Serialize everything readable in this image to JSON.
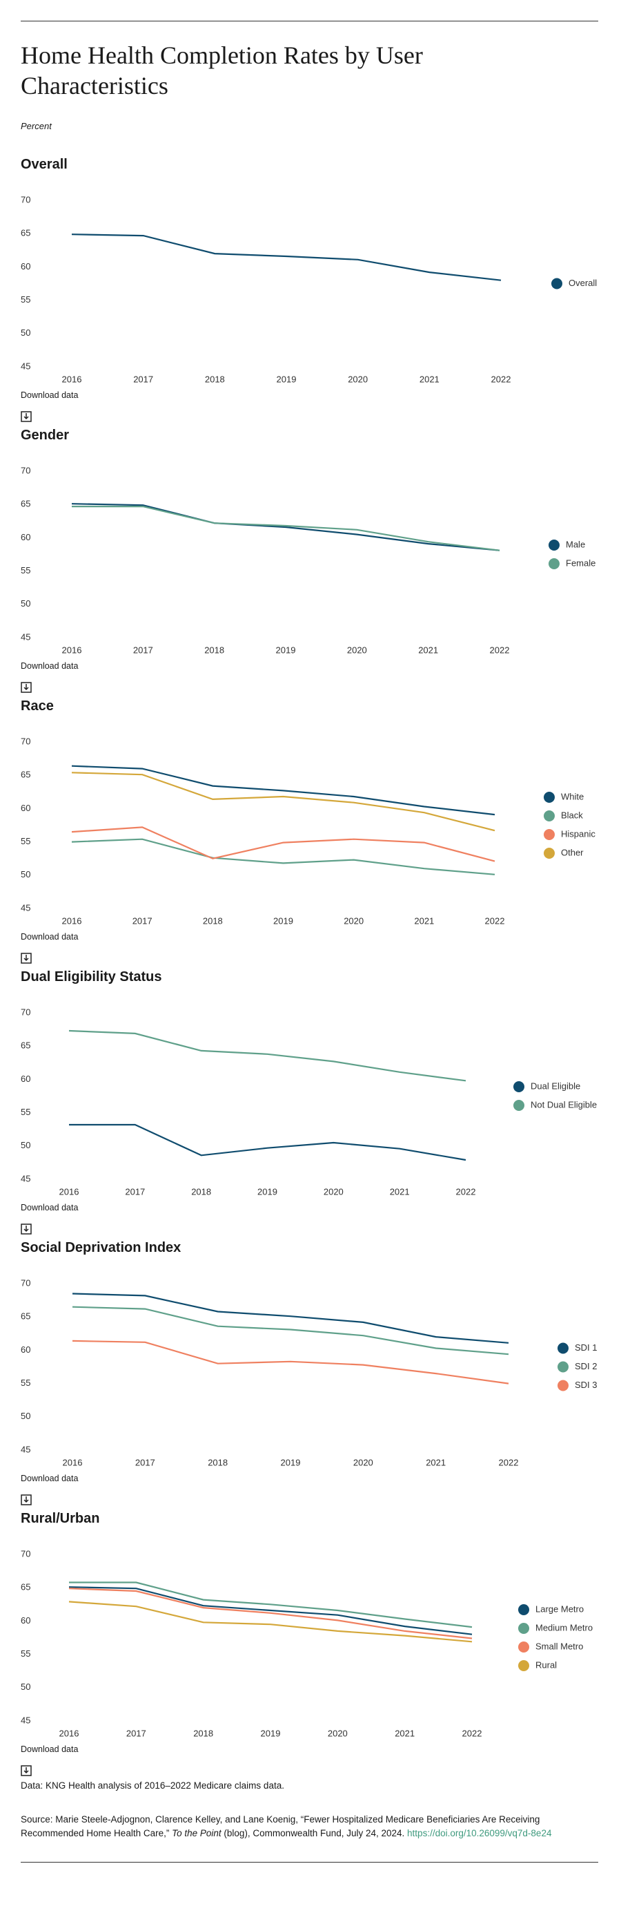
{
  "header": {
    "title": "Home Health Completion Rates by User Characteristics",
    "subtitle": "Percent"
  },
  "download_label": "Download data",
  "chart_data": [
    {
      "type": "line",
      "title": "Overall",
      "categories": [
        "2016",
        "2017",
        "2018",
        "2019",
        "2020",
        "2021",
        "2022"
      ],
      "ylim": [
        45,
        70
      ],
      "yticks": [
        45,
        50,
        55,
        60,
        65,
        70
      ],
      "series": [
        {
          "name": "Overall",
          "color": "#0f4c6e",
          "values": [
            64.9,
            64.7,
            62.0,
            61.6,
            61.1,
            59.2,
            58.0
          ]
        }
      ]
    },
    {
      "type": "line",
      "title": "Gender",
      "categories": [
        "2016",
        "2017",
        "2018",
        "2019",
        "2020",
        "2021",
        "2022"
      ],
      "ylim": [
        45,
        70
      ],
      "yticks": [
        45,
        50,
        55,
        60,
        65,
        70
      ],
      "series": [
        {
          "name": "Male",
          "color": "#0f4c6e",
          "values": [
            65.1,
            64.9,
            62.2,
            61.6,
            60.5,
            59.1,
            58.1
          ]
        },
        {
          "name": "Female",
          "color": "#5fa08a",
          "values": [
            64.7,
            64.7,
            62.2,
            61.8,
            61.2,
            59.4,
            58.1
          ]
        }
      ]
    },
    {
      "type": "line",
      "title": "Race",
      "categories": [
        "2016",
        "2017",
        "2018",
        "2019",
        "2020",
        "2021",
        "2022"
      ],
      "ylim": [
        45,
        70
      ],
      "yticks": [
        45,
        50,
        55,
        60,
        65,
        70
      ],
      "series": [
        {
          "name": "White",
          "color": "#0f4c6e",
          "values": [
            66.4,
            66.0,
            63.4,
            62.7,
            61.8,
            60.3,
            59.1
          ]
        },
        {
          "name": "Black",
          "color": "#5fa08a",
          "values": [
            55.0,
            55.4,
            52.6,
            51.8,
            52.3,
            51.0,
            50.1
          ]
        },
        {
          "name": "Hispanic",
          "color": "#ef8060",
          "values": [
            56.5,
            57.2,
            52.5,
            54.9,
            55.4,
            54.9,
            52.1
          ]
        },
        {
          "name": "Other",
          "color": "#d4a73a",
          "values": [
            65.4,
            65.1,
            61.4,
            61.8,
            60.9,
            59.4,
            56.7
          ]
        }
      ]
    },
    {
      "type": "line",
      "title": "Dual Eligibility Status",
      "categories": [
        "2016",
        "2017",
        "2018",
        "2019",
        "2020",
        "2021",
        "2022"
      ],
      "ylim": [
        45,
        70
      ],
      "yticks": [
        45,
        50,
        55,
        60,
        65,
        70
      ],
      "series": [
        {
          "name": "Dual Eligible",
          "color": "#0f4c6e",
          "values": [
            53.2,
            53.2,
            48.6,
            49.7,
            50.5,
            49.6,
            47.9
          ]
        },
        {
          "name": "Not Dual Eligible",
          "color": "#5fa08a",
          "values": [
            67.3,
            66.9,
            64.3,
            63.8,
            62.7,
            61.1,
            59.8
          ]
        }
      ]
    },
    {
      "type": "line",
      "title": "Social Deprivation Index",
      "categories": [
        "2016",
        "2017",
        "2018",
        "2019",
        "2020",
        "2021",
        "2022"
      ],
      "ylim": [
        45,
        70
      ],
      "yticks": [
        45,
        50,
        55,
        60,
        65,
        70
      ],
      "series": [
        {
          "name": "SDI 1",
          "color": "#0f4c6e",
          "values": [
            68.5,
            68.2,
            65.8,
            65.1,
            64.2,
            62.0,
            61.1
          ]
        },
        {
          "name": "SDI 2",
          "color": "#5fa08a",
          "values": [
            66.5,
            66.2,
            63.6,
            63.1,
            62.2,
            60.3,
            59.4
          ]
        },
        {
          "name": "SDI 3",
          "color": "#ef8060",
          "values": [
            61.4,
            61.2,
            58.0,
            58.3,
            57.8,
            56.5,
            55.0
          ]
        }
      ]
    },
    {
      "type": "line",
      "title": "Rural/Urban",
      "categories": [
        "2016",
        "2017",
        "2018",
        "2019",
        "2020",
        "2021",
        "2022"
      ],
      "ylim": [
        45,
        70
      ],
      "yticks": [
        45,
        50,
        55,
        60,
        65,
        70
      ],
      "series": [
        {
          "name": "Large Metro",
          "color": "#0f4c6e",
          "values": [
            65.1,
            64.9,
            62.3,
            61.6,
            60.9,
            59.2,
            58.0
          ]
        },
        {
          "name": "Medium Metro",
          "color": "#5fa08a",
          "values": [
            65.8,
            65.8,
            63.2,
            62.5,
            61.6,
            60.3,
            59.1
          ]
        },
        {
          "name": "Small Metro",
          "color": "#ef8060",
          "values": [
            64.9,
            64.5,
            62.0,
            61.2,
            60.1,
            58.5,
            57.4
          ]
        },
        {
          "name": "Rural",
          "color": "#d4a73a",
          "values": [
            62.9,
            62.2,
            59.8,
            59.5,
            58.5,
            57.8,
            56.9
          ]
        }
      ]
    }
  ],
  "footer": {
    "data_note": "Data: KNG Health analysis of 2016–2022 Medicare claims data.",
    "source_prefix": "Source: Marie Steele-Adjognon, Clarence Kelley, and Lane Koenig, “Fewer Hospitalized Medicare Beneficiaries Are Receiving Recommended Home Health Care,” ",
    "source_italic": "To the Point",
    "source_suffix": " (blog), Commonwealth Fund, July 24, 2024. ",
    "source_link": "https://doi.org/10.26099/vq7d-8e24"
  }
}
